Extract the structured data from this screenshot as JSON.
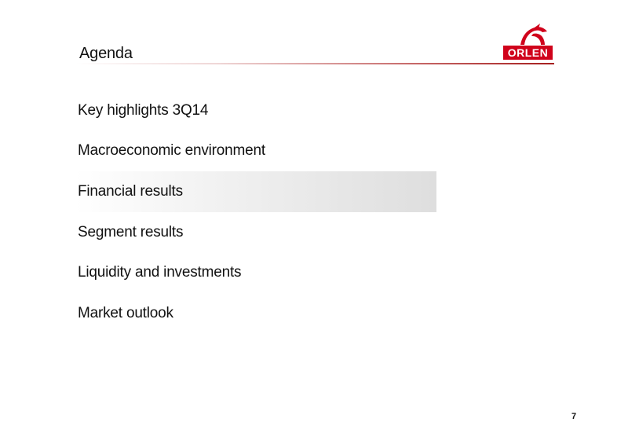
{
  "header": {
    "title": "Agenda",
    "logo_text": "ORLEN"
  },
  "agenda": {
    "items": [
      {
        "label": "Key highlights 3Q14",
        "active": false
      },
      {
        "label": "Macroeconomic environment",
        "active": false
      },
      {
        "label": "Financial results",
        "active": true
      },
      {
        "label": "Segment results",
        "active": false
      },
      {
        "label": "Liquidity and investments",
        "active": false
      },
      {
        "label": "Market outlook",
        "active": false
      }
    ]
  },
  "footer": {
    "page_number": "7"
  },
  "colors": {
    "brand_red": "#d0021b",
    "highlight_gray": "#dedede"
  },
  "icons": {
    "logo": "orlen-eagle-logo"
  }
}
